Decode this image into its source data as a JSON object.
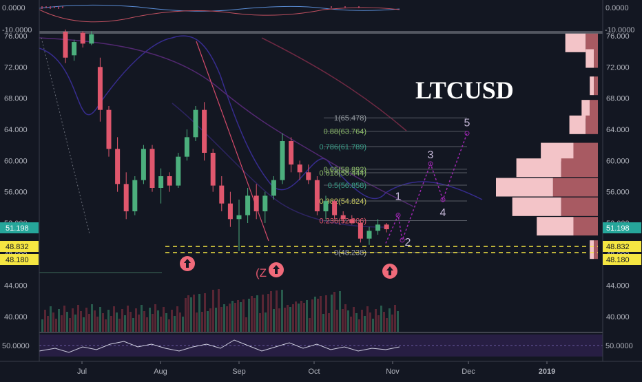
{
  "chart_data": {
    "type": "candlestick",
    "symbol": "LTCUSD",
    "colors": {
      "background": "#131722",
      "up_candle": "#4caf7d",
      "down_candle": "#e0576d",
      "fib_line": "#9aa0a6",
      "support_dashed": "#f5e642",
      "wave_path": "#9c27b0",
      "volume_profile_light": "#f3c4c8",
      "volume_profile_dark": "#a85a62",
      "arrow_badge": "#f06a7a",
      "label_green": "#26a69a",
      "label_yellow": "#f5e642"
    },
    "x_axis": {
      "tick_labels": [
        "Jul",
        "Aug",
        "Sep",
        "Oct",
        "Nov",
        "Dec",
        "2019"
      ]
    },
    "price_axis": {
      "tick_labels": [
        "76.000",
        "72.000",
        "68.000",
        "64.000",
        "60.000",
        "56.000",
        "52.000",
        "48.000",
        "44.000",
        "40.000"
      ],
      "ylim": [
        38.5,
        76.5
      ],
      "current_price_label": "51.198",
      "level_labels": [
        "48.832",
        "48.180"
      ]
    },
    "oscillator_top": {
      "tick_labels": [
        "0.0000",
        "-10.0000"
      ]
    },
    "oscillator_bottom": {
      "tick_labels": [
        "50.0000"
      ]
    },
    "fib_levels": [
      {
        "label": "1(65.478)",
        "price": 65.478
      },
      {
        "label": "0.88(63.764)",
        "price": 63.764
      },
      {
        "label": "0.786(61.789)",
        "price": 61.789
      },
      {
        "label": "0.65(58.892)",
        "price": 58.892
      },
      {
        "label": "0.618(58.444)",
        "price": 58.444
      },
      {
        "label": "0.5(56.858)",
        "price": 56.858
      },
      {
        "label": "0.382(54.824)",
        "price": 54.824
      },
      {
        "label": "0.236(52.306)",
        "price": 52.306
      },
      {
        "label": "0(48.238)",
        "price": 48.238
      }
    ],
    "waves": [
      {
        "label": "1",
        "price": 53.0
      },
      {
        "label": "2",
        "price": 49.8
      },
      {
        "label": "3",
        "price": 59.6
      },
      {
        "label": "4",
        "price": 55.0
      },
      {
        "label": "5",
        "price": 63.5
      }
    ],
    "annotations": [
      "(Z"
    ],
    "candles": [
      {
        "o": 76.5,
        "h": 76.8,
        "l": 72.5,
        "c": 73.2
      },
      {
        "o": 73.5,
        "h": 75.5,
        "l": 72.8,
        "c": 75.2
      },
      {
        "o": 76.4,
        "h": 76.6,
        "l": 74.5,
        "c": 75.0
      },
      {
        "o": 75.0,
        "h": 76.6,
        "l": 74.8,
        "c": 76.2
      },
      {
        "o": 72.0,
        "h": 73.2,
        "l": 65.0,
        "c": 66.5
      },
      {
        "o": 66.5,
        "h": 67.0,
        "l": 60.5,
        "c": 61.5
      },
      {
        "o": 61.5,
        "h": 63.0,
        "l": 56.0,
        "c": 57.0
      },
      {
        "o": 57.0,
        "h": 58.5,
        "l": 52.5,
        "c": 53.5
      },
      {
        "o": 53.5,
        "h": 58.0,
        "l": 53.0,
        "c": 57.5
      },
      {
        "o": 57.5,
        "h": 62.0,
        "l": 57.0,
        "c": 61.5
      },
      {
        "o": 61.5,
        "h": 62.0,
        "l": 56.0,
        "c": 56.5
      },
      {
        "o": 56.5,
        "h": 59.0,
        "l": 54.5,
        "c": 58.0
      },
      {
        "o": 58.0,
        "h": 58.5,
        "l": 56.0,
        "c": 56.8
      },
      {
        "o": 56.8,
        "h": 61.0,
        "l": 56.5,
        "c": 60.5
      },
      {
        "o": 60.5,
        "h": 64.0,
        "l": 60.0,
        "c": 63.0
      },
      {
        "o": 63.0,
        "h": 67.0,
        "l": 62.5,
        "c": 66.5
      },
      {
        "o": 66.5,
        "h": 67.5,
        "l": 60.0,
        "c": 61.0
      },
      {
        "o": 61.0,
        "h": 61.5,
        "l": 56.0,
        "c": 56.8
      },
      {
        "o": 56.8,
        "h": 58.0,
        "l": 53.5,
        "c": 54.5
      },
      {
        "o": 54.5,
        "h": 56.0,
        "l": 51.5,
        "c": 52.5
      },
      {
        "o": 52.5,
        "h": 55.0,
        "l": 48.4,
        "c": 53.0
      },
      {
        "o": 53.0,
        "h": 56.5,
        "l": 52.0,
        "c": 55.5
      },
      {
        "o": 55.5,
        "h": 57.0,
        "l": 52.5,
        "c": 53.5
      },
      {
        "o": 53.5,
        "h": 56.0,
        "l": 52.0,
        "c": 55.5
      },
      {
        "o": 55.5,
        "h": 58.0,
        "l": 55.0,
        "c": 57.5
      },
      {
        "o": 57.5,
        "h": 63.5,
        "l": 57.0,
        "c": 62.5
      },
      {
        "o": 62.5,
        "h": 63.0,
        "l": 58.5,
        "c": 59.5
      },
      {
        "o": 59.5,
        "h": 60.0,
        "l": 57.5,
        "c": 58.5
      },
      {
        "o": 58.5,
        "h": 59.5,
        "l": 57.0,
        "c": 57.5
      },
      {
        "o": 57.5,
        "h": 58.0,
        "l": 53.0,
        "c": 53.5
      },
      {
        "o": 53.5,
        "h": 55.5,
        "l": 52.5,
        "c": 54.8
      },
      {
        "o": 54.8,
        "h": 55.0,
        "l": 52.5,
        "c": 53.0
      },
      {
        "o": 53.0,
        "h": 53.5,
        "l": 52.0,
        "c": 52.5
      },
      {
        "o": 52.5,
        "h": 53.0,
        "l": 51.8,
        "c": 52.0
      },
      {
        "o": 52.0,
        "h": 52.5,
        "l": 49.5,
        "c": 50.0
      },
      {
        "o": 50.0,
        "h": 51.5,
        "l": 49.2,
        "c": 51.0
      },
      {
        "o": 51.0,
        "h": 52.5,
        "l": 50.5,
        "c": 51.8
      },
      {
        "o": 51.8,
        "h": 52.0,
        "l": 50.8,
        "c": 51.2
      }
    ],
    "volume_profile": [
      {
        "price": 75.0,
        "total": 8,
        "up": 3
      },
      {
        "price": 73.0,
        "total": 3,
        "up": 1
      },
      {
        "price": 69.5,
        "total": 2,
        "up": 1
      },
      {
        "price": 66.5,
        "total": 4,
        "up": 2
      },
      {
        "price": 64.5,
        "total": 7,
        "up": 3
      },
      {
        "price": 61.0,
        "total": 14,
        "up": 6
      },
      {
        "price": 59.0,
        "total": 20,
        "up": 9
      },
      {
        "price": 56.5,
        "total": 25,
        "up": 11
      },
      {
        "price": 54.0,
        "total": 21,
        "up": 9
      },
      {
        "price": 51.5,
        "total": 15,
        "up": 6
      },
      {
        "price": 48.5,
        "total": 2,
        "up": 1
      }
    ]
  }
}
